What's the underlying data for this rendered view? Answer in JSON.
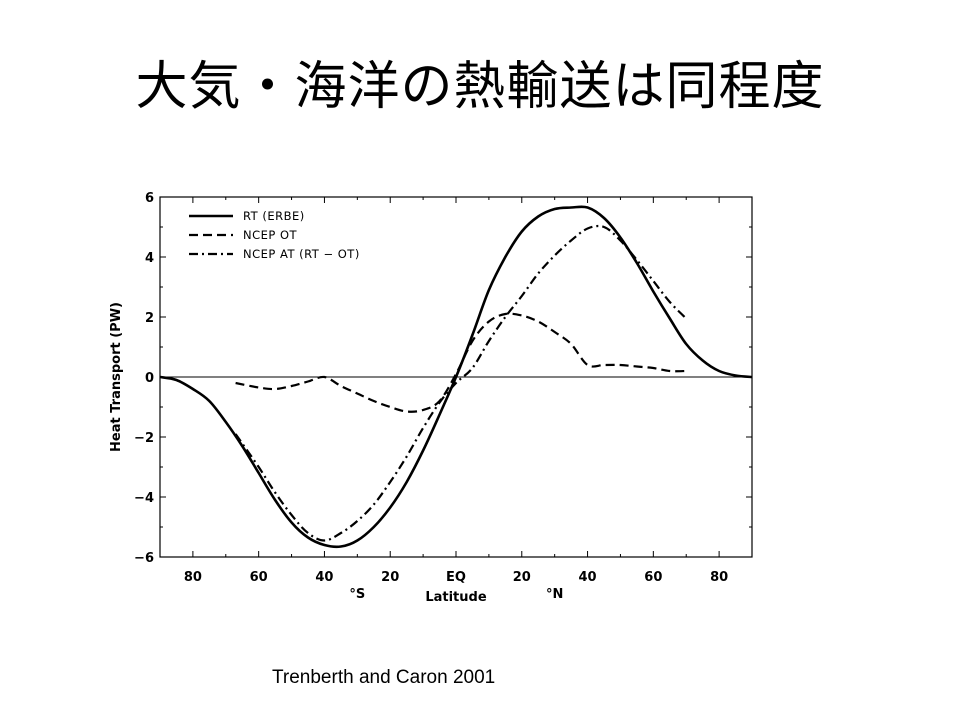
{
  "slide": {
    "title": "大気・海洋の熱輸送は同程度",
    "citation": "Trenberth and Caron 2001"
  },
  "chart_data": {
    "type": "line",
    "xlabel": "Latitude",
    "ylabel": "Heat Transport (PW)",
    "x_unit_labels": [
      "°S",
      "°N"
    ],
    "xlim": [
      -90,
      90
    ],
    "ylim": [
      -6,
      6
    ],
    "x_ticks": [
      {
        "value": -80,
        "label": "80"
      },
      {
        "value": -60,
        "label": "60"
      },
      {
        "value": -40,
        "label": "40"
      },
      {
        "value": -20,
        "label": "20"
      },
      {
        "value": 0,
        "label": "EQ"
      },
      {
        "value": 20,
        "label": "20"
      },
      {
        "value": 40,
        "label": "40"
      },
      {
        "value": 60,
        "label": "60"
      },
      {
        "value": 80,
        "label": "80"
      }
    ],
    "y_ticks": [
      {
        "value": -6,
        "label": "−6"
      },
      {
        "value": -4,
        "label": "−4"
      },
      {
        "value": -2,
        "label": "−2"
      },
      {
        "value": 0,
        "label": "0"
      },
      {
        "value": 2,
        "label": "2"
      },
      {
        "value": 4,
        "label": "4"
      },
      {
        "value": 6,
        "label": "6"
      }
    ],
    "zero_line": true,
    "legend_position": "top-left",
    "series": [
      {
        "name": "RT (ERBE)",
        "style": "solid",
        "x": [
          -90,
          -85,
          -80,
          -75,
          -70,
          -65,
          -60,
          -55,
          -50,
          -45,
          -40,
          -35,
          -30,
          -25,
          -20,
          -15,
          -10,
          -5,
          0,
          5,
          10,
          15,
          20,
          25,
          30,
          35,
          40,
          45,
          50,
          55,
          60,
          65,
          70,
          75,
          80,
          85,
          90
        ],
        "y": [
          0,
          -0.1,
          -0.4,
          -0.8,
          -1.5,
          -2.3,
          -3.2,
          -4.1,
          -4.85,
          -5.35,
          -5.6,
          -5.65,
          -5.45,
          -5.0,
          -4.35,
          -3.5,
          -2.45,
          -1.25,
          0,
          1.4,
          2.9,
          4.0,
          4.85,
          5.35,
          5.6,
          5.65,
          5.65,
          5.3,
          4.65,
          3.8,
          2.85,
          1.95,
          1.1,
          0.55,
          0.2,
          0.05,
          0
        ]
      },
      {
        "name": "NCEP OT",
        "style": "dashed",
        "x": [
          -67,
          -60,
          -55,
          -50,
          -45,
          -40,
          -35,
          -30,
          -25,
          -20,
          -15,
          -10,
          -5,
          0,
          5,
          10,
          15,
          20,
          25,
          30,
          35,
          40,
          45,
          50,
          55,
          60,
          65,
          70
        ],
        "y": [
          -0.2,
          -0.35,
          -0.4,
          -0.3,
          -0.15,
          0,
          -0.3,
          -0.55,
          -0.8,
          -1.0,
          -1.15,
          -1.1,
          -0.8,
          0.1,
          1.2,
          1.85,
          2.1,
          2.05,
          1.85,
          1.5,
          1.1,
          0.4,
          0.4,
          0.4,
          0.35,
          0.3,
          0.2,
          0.2
        ]
      },
      {
        "name": "NCEP AT (RT − OT)",
        "style": "dashdot",
        "x": [
          -67,
          -60,
          -55,
          -50,
          -45,
          -40,
          -35,
          -30,
          -25,
          -20,
          -15,
          -10,
          -5,
          0,
          5,
          10,
          15,
          20,
          25,
          30,
          35,
          40,
          45,
          50,
          55,
          60,
          65,
          70
        ],
        "y": [
          -1.9,
          -3.0,
          -3.85,
          -4.6,
          -5.2,
          -5.45,
          -5.2,
          -4.8,
          -4.25,
          -3.5,
          -2.65,
          -1.7,
          -0.85,
          -0.2,
          0.3,
          1.2,
          2.0,
          2.7,
          3.45,
          4.05,
          4.55,
          4.95,
          5.0,
          4.55,
          3.9,
          3.2,
          2.5,
          1.95
        ]
      }
    ]
  }
}
